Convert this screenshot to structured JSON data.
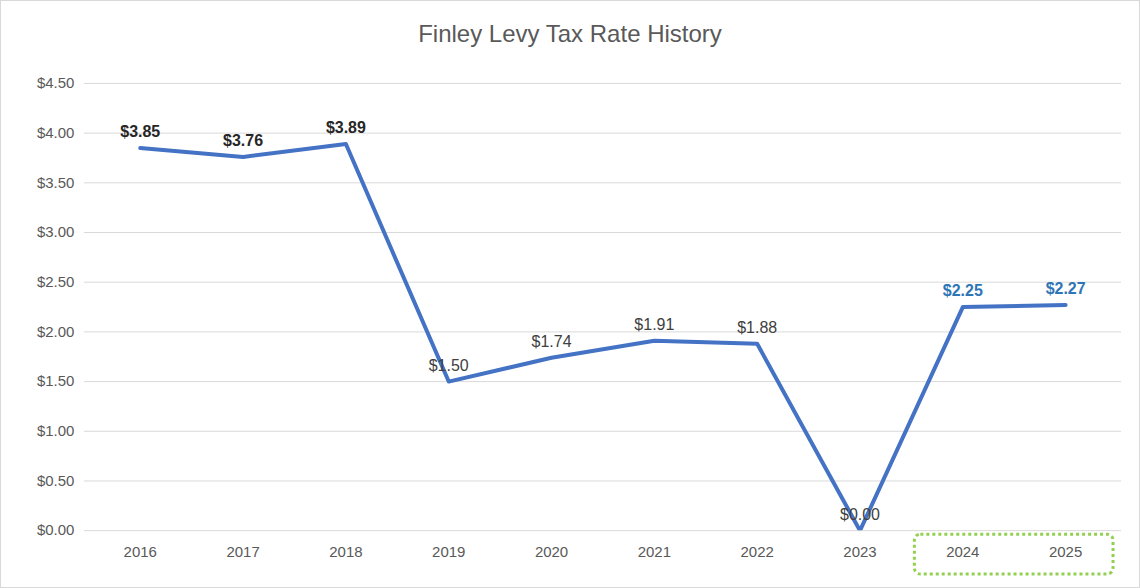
{
  "chart_data": {
    "type": "line",
    "title": "Finley Levy Tax Rate History",
    "categories": [
      "2016",
      "2017",
      "2018",
      "2019",
      "2020",
      "2021",
      "2022",
      "2023",
      "2024",
      "2025"
    ],
    "values": [
      3.85,
      3.76,
      3.89,
      1.5,
      1.74,
      1.91,
      1.88,
      0.0,
      2.25,
      2.27
    ],
    "value_labels": [
      "$3.85",
      "$3.76",
      "$3.89",
      "$1.50",
      "$1.74",
      "$1.91",
      "$1.88",
      "$0.00",
      "$2.25",
      "$2.27"
    ],
    "color": "#4472c4",
    "ylim": [
      0,
      4.5
    ],
    "yticks": [
      {
        "value": 0,
        "label": "$0.00"
      },
      {
        "value": 0.5,
        "label": "$0.50"
      },
      {
        "value": 1,
        "label": "$1.00"
      },
      {
        "value": 1.5,
        "label": "$1.50"
      },
      {
        "value": 2,
        "label": "$2.00"
      },
      {
        "value": 2.5,
        "label": "$2.50"
      },
      {
        "value": 3,
        "label": "$3.00"
      },
      {
        "value": 3.5,
        "label": "$3.50"
      },
      {
        "value": 4,
        "label": "$4.00"
      },
      {
        "value": 4.5,
        "label": "$4.50"
      }
    ],
    "grid": true,
    "data_labels": true
  }
}
